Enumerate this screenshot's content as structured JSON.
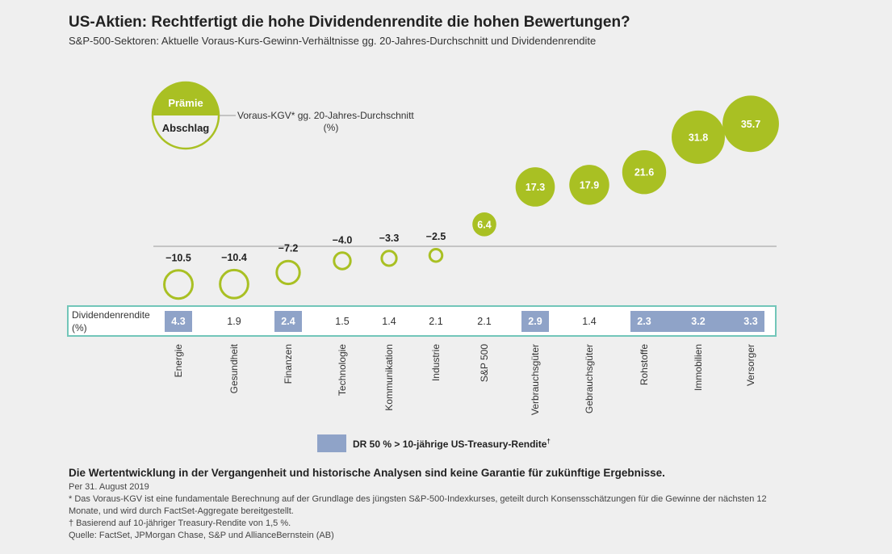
{
  "title": "US-Aktien: Rechtfertigt die hohe Dividendenrendite die hohen Bewertungen?",
  "subtitle": "S&P-500-Sektoren: Aktuelle Voraus-Kurs-Gewinn-Verhältnisse gg. 20-Jahres-Durchschnitt und Dividendenrendite",
  "key": {
    "premium": "Prämie",
    "discount": "Abschlag",
    "label_line1": "Voraus-KGV* gg. 20-Jahres-Durchschnitt",
    "label_line2": "(%)"
  },
  "chart_data": {
    "type": "bubble",
    "categories": [
      "Energie",
      "Gesundheit",
      "Finanzen",
      "Technologie",
      "Kommunikation",
      "Industrie",
      "S&P 500",
      "Verbrauchsgüter",
      "Gebrauchsgüter",
      "Rohstoffe",
      "Immobilien",
      "Versorger"
    ],
    "pe_vs_avg_pct": [
      -10.5,
      -10.4,
      -7.2,
      -4.0,
      -3.3,
      -2.5,
      6.4,
      17.3,
      17.9,
      21.6,
      31.8,
      35.7
    ],
    "pe_labels": [
      "−10.5",
      "−10.4",
      "−7.2",
      "−4.0",
      "−3.3",
      "−2.5",
      "6.4",
      "17.3",
      "17.9",
      "21.6",
      "31.8",
      "35.7"
    ],
    "dividend_yield_label": [
      "Dividendenrendite",
      "(%)"
    ],
    "dividend_yield": [
      "4.3",
      "1.9",
      "2.4",
      "1.5",
      "1.4",
      "2.1",
      "2.1",
      "2.9",
      "1.4",
      "2.3",
      "3.2",
      "3.3"
    ],
    "highlight": [
      true,
      false,
      true,
      false,
      false,
      false,
      false,
      true,
      false,
      true,
      true,
      true
    ],
    "colors": {
      "premium": "#a9c023",
      "highlight": "#8fa3c8",
      "border": "#72c6b9",
      "axis": "#999999"
    }
  },
  "legend": {
    "label": "DR 50 % > 10-jährige US-Treasury-Rendite",
    "sup": "†"
  },
  "footer": {
    "disclaimer": "Die Wertentwicklung in der Vergangenheit und historische Analysen sind keine Garantie für zukünftige Ergebnisse.",
    "date": "Per 31. August 2019",
    "note1": "* Das Voraus-KGV ist eine fundamentale Berechnung auf der Grundlage des jüngsten S&P-500-Indexkurses, geteilt durch Konsensschätzungen für die Gewinne der nächsten 12 Monate, und wird durch FactSet-Aggregate bereitgestellt.",
    "note2": "† Basierend auf 10-jähriger Treasury-Rendite von 1,5 %.",
    "source": "Quelle: FactSet, JPMorgan Chase, S&P und AllianceBernstein (AB)"
  }
}
